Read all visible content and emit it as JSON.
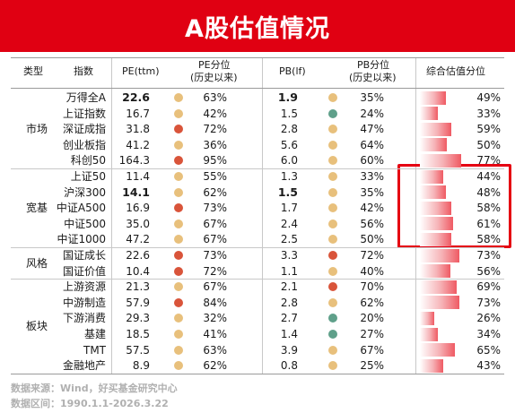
{
  "title": "A股估值情况",
  "headers": {
    "type": "类型",
    "index": "指数",
    "pe": "PE(ttm)",
    "pe_pct_line1": "PE分位",
    "pe_pct_line2": "(历史以来)",
    "pb": "PB(lf)",
    "pb_pct_line1": "PB分位",
    "pb_pct_line2": "(历史以来)",
    "composite": "综合估值分位"
  },
  "colors": {
    "high": "#d9543a",
    "mid": "#e8c07c",
    "low": "#5fa08a",
    "accent": "#e00012"
  },
  "groups": [
    {
      "label": "市场",
      "start": 0,
      "end": 4
    },
    {
      "label": "宽基",
      "start": 5,
      "end": 9
    },
    {
      "label": "风格",
      "start": 10,
      "end": 11
    },
    {
      "label": "板块",
      "start": 12,
      "end": 17
    }
  ],
  "chart_data": {
    "type": "table",
    "rows": [
      {
        "name": "万得全A",
        "pe": "22.6",
        "pe_pct": "63%",
        "pe_level": "mid",
        "pb": "1.9",
        "pb_pct": "35%",
        "pb_level": "mid",
        "composite": 49,
        "composite_label": "49%",
        "bold": true
      },
      {
        "name": "上证指数",
        "pe": "16.7",
        "pe_pct": "42%",
        "pe_level": "mid",
        "pb": "1.5",
        "pb_pct": "24%",
        "pb_level": "low",
        "composite": 33,
        "composite_label": "33%",
        "bold": false
      },
      {
        "name": "深证成指",
        "pe": "31.8",
        "pe_pct": "72%",
        "pe_level": "high",
        "pb": "2.8",
        "pb_pct": "47%",
        "pb_level": "mid",
        "composite": 59,
        "composite_label": "59%",
        "bold": false
      },
      {
        "name": "创业板指",
        "pe": "41.2",
        "pe_pct": "36%",
        "pe_level": "mid",
        "pb": "5.6",
        "pb_pct": "64%",
        "pb_level": "mid",
        "composite": 50,
        "composite_label": "50%",
        "bold": false
      },
      {
        "name": "科创50",
        "pe": "164.3",
        "pe_pct": "95%",
        "pe_level": "high",
        "pb": "6.0",
        "pb_pct": "60%",
        "pb_level": "mid",
        "composite": 77,
        "composite_label": "77%",
        "bold": false
      },
      {
        "name": "上证50",
        "pe": "11.4",
        "pe_pct": "55%",
        "pe_level": "mid",
        "pb": "1.3",
        "pb_pct": "33%",
        "pb_level": "mid",
        "composite": 44,
        "composite_label": "44%",
        "bold": false
      },
      {
        "name": "沪深300",
        "pe": "14.1",
        "pe_pct": "62%",
        "pe_level": "mid",
        "pb": "1.5",
        "pb_pct": "35%",
        "pb_level": "mid",
        "composite": 48,
        "composite_label": "48%",
        "bold": true
      },
      {
        "name": "中证A500",
        "pe": "16.9",
        "pe_pct": "73%",
        "pe_level": "high",
        "pb": "1.7",
        "pb_pct": "42%",
        "pb_level": "mid",
        "composite": 58,
        "composite_label": "58%",
        "bold": false
      },
      {
        "name": "中证500",
        "pe": "35.0",
        "pe_pct": "67%",
        "pe_level": "mid",
        "pb": "2.4",
        "pb_pct": "56%",
        "pb_level": "mid",
        "composite": 61,
        "composite_label": "61%",
        "bold": false
      },
      {
        "name": "中证1000",
        "pe": "47.2",
        "pe_pct": "67%",
        "pe_level": "mid",
        "pb": "2.5",
        "pb_pct": "50%",
        "pb_level": "mid",
        "composite": 58,
        "composite_label": "58%",
        "bold": false
      },
      {
        "name": "国证成长",
        "pe": "22.6",
        "pe_pct": "73%",
        "pe_level": "high",
        "pb": "3.3",
        "pb_pct": "72%",
        "pb_level": "high",
        "composite": 73,
        "composite_label": "73%",
        "bold": false
      },
      {
        "name": "国证价值",
        "pe": "10.4",
        "pe_pct": "72%",
        "pe_level": "high",
        "pb": "1.1",
        "pb_pct": "40%",
        "pb_level": "mid",
        "composite": 56,
        "composite_label": "56%",
        "bold": false
      },
      {
        "name": "上游资源",
        "pe": "21.3",
        "pe_pct": "67%",
        "pe_level": "mid",
        "pb": "2.1",
        "pb_pct": "70%",
        "pb_level": "high",
        "composite": 69,
        "composite_label": "69%",
        "bold": false
      },
      {
        "name": "中游制造",
        "pe": "57.9",
        "pe_pct": "84%",
        "pe_level": "high",
        "pb": "2.8",
        "pb_pct": "62%",
        "pb_level": "mid",
        "composite": 73,
        "composite_label": "73%",
        "bold": false
      },
      {
        "name": "下游消费",
        "pe": "29.3",
        "pe_pct": "32%",
        "pe_level": "mid",
        "pb": "2.7",
        "pb_pct": "20%",
        "pb_level": "low",
        "composite": 26,
        "composite_label": "26%",
        "bold": false
      },
      {
        "name": "基建",
        "pe": "18.5",
        "pe_pct": "41%",
        "pe_level": "mid",
        "pb": "1.4",
        "pb_pct": "27%",
        "pb_level": "low",
        "composite": 34,
        "composite_label": "34%",
        "bold": false
      },
      {
        "name": "TMT",
        "pe": "57.5",
        "pe_pct": "63%",
        "pe_level": "mid",
        "pb": "3.9",
        "pb_pct": "67%",
        "pb_level": "mid",
        "composite": 65,
        "composite_label": "65%",
        "bold": false
      },
      {
        "name": "金融地产",
        "pe": "8.9",
        "pe_pct": "62%",
        "pe_level": "mid",
        "pb": "0.8",
        "pb_pct": "25%",
        "pb_level": "mid",
        "composite": 43,
        "composite_label": "43%",
        "bold": false
      }
    ]
  },
  "footer": {
    "source": "数据来源：Wind，好买基金研究中心",
    "range": "数据区间：1990.1.1-2026.3.22"
  }
}
